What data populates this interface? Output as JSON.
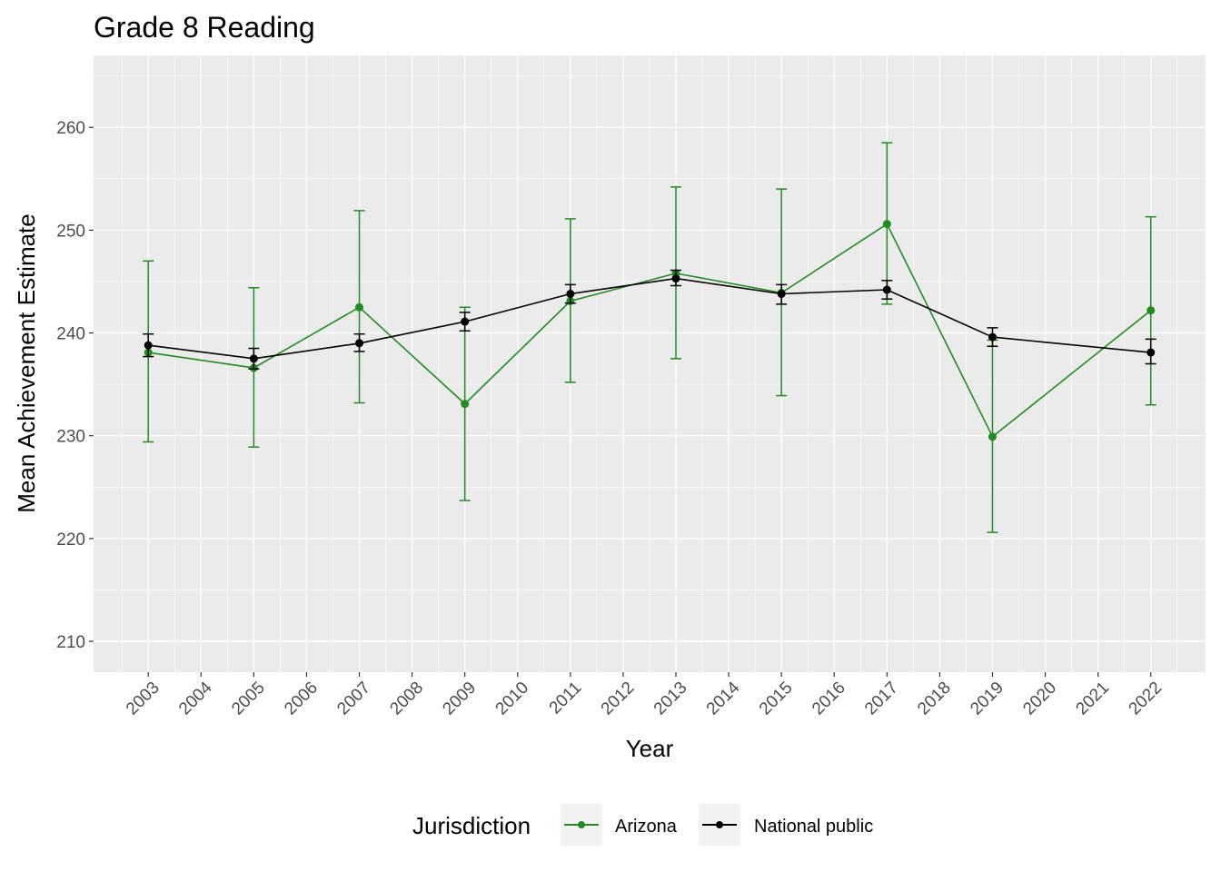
{
  "chart_data": {
    "type": "line",
    "title": "Grade 8 Reading",
    "xlabel": "Year",
    "ylabel": "Mean Achievement Estimate",
    "x_ticks": [
      "2003",
      "2004",
      "2005",
      "2006",
      "2007",
      "2008",
      "2009",
      "2010",
      "2011",
      "2012",
      "2013",
      "2014",
      "2015",
      "2016",
      "2017",
      "2018",
      "2019",
      "2020",
      "2021",
      "2022"
    ],
    "y_ticks": [
      210,
      220,
      230,
      240,
      250,
      260
    ],
    "ylim": [
      207,
      267
    ],
    "grid": true,
    "legend": {
      "title": "Jurisdiction",
      "position": "bottom"
    },
    "series": [
      {
        "name": "Arizona",
        "color": "#228b22",
        "points": [
          {
            "x": "2003",
            "y": 238.1,
            "lower": 229.4,
            "upper": 247.0
          },
          {
            "x": "2005",
            "y": 236.6,
            "lower": 228.9,
            "upper": 244.4
          },
          {
            "x": "2007",
            "y": 242.5,
            "lower": 233.2,
            "upper": 251.9
          },
          {
            "x": "2009",
            "y": 233.1,
            "lower": 223.7,
            "upper": 242.5
          },
          {
            "x": "2011",
            "y": 243.1,
            "lower": 235.2,
            "upper": 251.1
          },
          {
            "x": "2013",
            "y": 245.8,
            "lower": 237.5,
            "upper": 254.2
          },
          {
            "x": "2015",
            "y": 243.9,
            "lower": 233.9,
            "upper": 254.0
          },
          {
            "x": "2017",
            "y": 250.6,
            "lower": 242.8,
            "upper": 258.5
          },
          {
            "x": "2019",
            "y": 229.9,
            "lower": 220.6,
            "upper": 239.3
          },
          {
            "x": "2022",
            "y": 242.2,
            "lower": 233.0,
            "upper": 251.3
          }
        ]
      },
      {
        "name": "National public",
        "color": "#000000",
        "points": [
          {
            "x": "2003",
            "y": 238.8,
            "lower": 237.7,
            "upper": 239.9
          },
          {
            "x": "2005",
            "y": 237.5,
            "lower": 236.5,
            "upper": 238.5
          },
          {
            "x": "2007",
            "y": 239.0,
            "lower": 238.2,
            "upper": 239.9
          },
          {
            "x": "2009",
            "y": 241.1,
            "lower": 240.2,
            "upper": 242.0
          },
          {
            "x": "2011",
            "y": 243.8,
            "lower": 242.9,
            "upper": 244.7
          },
          {
            "x": "2013",
            "y": 245.3,
            "lower": 244.6,
            "upper": 246.1
          },
          {
            "x": "2015",
            "y": 243.8,
            "lower": 242.8,
            "upper": 244.7
          },
          {
            "x": "2017",
            "y": 244.2,
            "lower": 243.3,
            "upper": 245.1
          },
          {
            "x": "2019",
            "y": 239.6,
            "lower": 238.7,
            "upper": 240.5
          },
          {
            "x": "2022",
            "y": 238.1,
            "lower": 237.0,
            "upper": 239.4
          }
        ]
      }
    ]
  }
}
